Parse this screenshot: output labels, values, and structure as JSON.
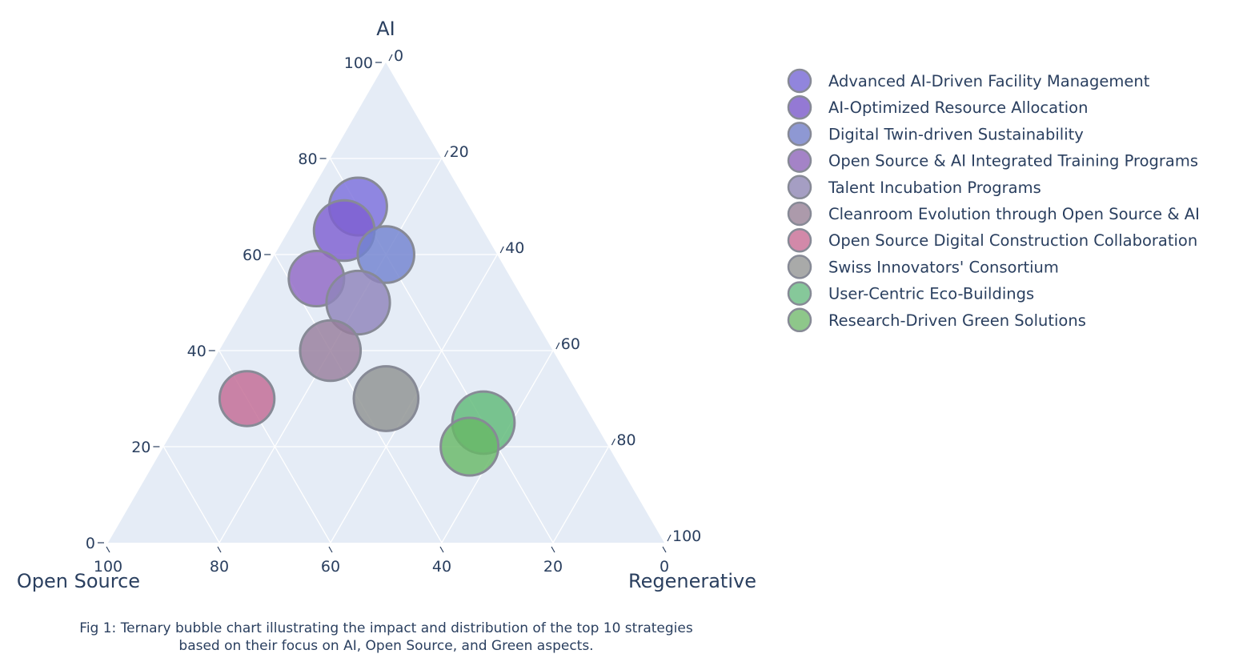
{
  "chart_data": {
    "type": "ternary-bubble",
    "axes": {
      "a": {
        "title": "AI",
        "ticks": [
          0,
          20,
          40,
          60,
          80,
          100
        ]
      },
      "b": {
        "title": "Open Source",
        "ticks": [
          0,
          20,
          40,
          60,
          80,
          100
        ]
      },
      "c": {
        "title": "Regenerative",
        "ticks": [
          0,
          20,
          40,
          60,
          80,
          100
        ]
      }
    },
    "grid": true,
    "legend_position": "right",
    "plot_bgcolor": "#e5ecf6",
    "points": [
      {
        "name": "Advanced AI-Driven Facility Management",
        "ai": 70,
        "open_source": 20,
        "regenerative": 10,
        "size": 1.0,
        "color": "#7b6fdc"
      },
      {
        "name": "AI-Optimized Resource Allocation",
        "ai": 65,
        "open_source": 25,
        "regenerative": 10,
        "size": 1.05,
        "color": "#7e5fd1"
      },
      {
        "name": "Digital Twin-driven Sustainability",
        "ai": 60,
        "open_source": 20,
        "regenerative": 20,
        "size": 0.98,
        "color": "#7182d0"
      },
      {
        "name": "Open Source & AI Integrated Training Programs",
        "ai": 55,
        "open_source": 35,
        "regenerative": 10,
        "size": 0.96,
        "color": "#9068c5"
      },
      {
        "name": "Talent Incubation Programs",
        "ai": 50,
        "open_source": 30,
        "regenerative": 20,
        "size": 1.1,
        "color": "#8f84bb"
      },
      {
        "name": "Cleanroom Evolution through Open Source & AI",
        "ai": 40,
        "open_source": 40,
        "regenerative": 20,
        "size": 1.05,
        "color": "#977e9c"
      },
      {
        "name": "Open Source Digital Construction Collaboration",
        "ai": 30,
        "open_source": 60,
        "regenerative": 10,
        "size": 0.95,
        "color": "#c26a94"
      },
      {
        "name": "Swiss Innovators' Consortium",
        "ai": 30,
        "open_source": 35,
        "regenerative": 35,
        "size": 1.12,
        "color": "#8f9391"
      },
      {
        "name": "User-Centric Eco-Buildings",
        "ai": 25,
        "open_source": 20,
        "regenerative": 55,
        "size": 1.08,
        "color": "#5fba78"
      },
      {
        "name": "Research-Driven Green Solutions",
        "ai": 20,
        "open_source": 25,
        "regenerative": 55,
        "size": 1.0,
        "color": "#68b866"
      }
    ],
    "legend_colors": [
      "#9185dd",
      "#9479d4",
      "#8e98d3",
      "#a483c7",
      "#a59ec3",
      "#ac9aab",
      "#d289a9",
      "#a9aaa9",
      "#86c89a",
      "#8ec78a"
    ]
  },
  "caption": {
    "line1": "Fig 1: Ternary bubble chart illustrating the impact and distribution of the top 10 strategies",
    "line2": "based on their focus on AI, Open Source, and Green aspects."
  }
}
